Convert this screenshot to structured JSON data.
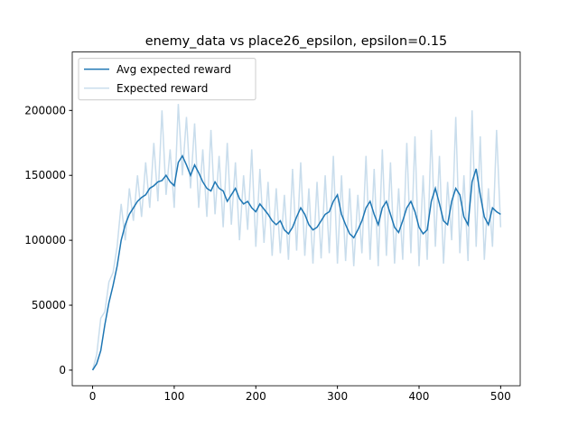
{
  "chart_data": {
    "type": "line",
    "title": "enemy_data vs place26_epsilon, epsilon=0.15",
    "x": [
      0,
      5,
      10,
      15,
      20,
      25,
      30,
      35,
      40,
      45,
      50,
      55,
      60,
      65,
      70,
      75,
      80,
      85,
      90,
      95,
      100,
      105,
      110,
      115,
      120,
      125,
      130,
      135,
      140,
      145,
      150,
      155,
      160,
      165,
      170,
      175,
      180,
      185,
      190,
      195,
      200,
      205,
      210,
      215,
      220,
      225,
      230,
      235,
      240,
      245,
      250,
      255,
      260,
      265,
      270,
      275,
      280,
      285,
      290,
      295,
      300,
      305,
      310,
      315,
      320,
      325,
      330,
      335,
      340,
      345,
      350,
      355,
      360,
      365,
      370,
      375,
      380,
      385,
      390,
      395,
      400,
      405,
      410,
      415,
      420,
      425,
      430,
      435,
      440,
      445,
      450,
      455,
      460,
      465,
      470,
      475,
      480,
      485,
      490,
      495,
      500
    ],
    "series": [
      {
        "name": "Avg expected reward",
        "color": "#1f77b4",
        "values": [
          0,
          5000,
          15000,
          35000,
          52000,
          65000,
          80000,
          100000,
          112000,
          120000,
          125000,
          130000,
          133000,
          135000,
          140000,
          142000,
          145000,
          146000,
          150000,
          145000,
          142000,
          160000,
          165000,
          158000,
          150000,
          158000,
          152000,
          145000,
          140000,
          138000,
          145000,
          140000,
          138000,
          130000,
          135000,
          140000,
          132000,
          128000,
          130000,
          125000,
          122000,
          128000,
          124000,
          120000,
          115000,
          112000,
          115000,
          108000,
          105000,
          110000,
          118000,
          125000,
          120000,
          112000,
          108000,
          110000,
          115000,
          120000,
          122000,
          130000,
          135000,
          120000,
          112000,
          105000,
          102000,
          108000,
          115000,
          125000,
          130000,
          120000,
          112000,
          125000,
          130000,
          120000,
          110000,
          106000,
          115000,
          125000,
          130000,
          122000,
          110000,
          105000,
          108000,
          130000,
          140000,
          128000,
          115000,
          112000,
          130000,
          140000,
          135000,
          118000,
          112000,
          145000,
          155000,
          135000,
          118000,
          112000,
          125000,
          122000,
          120000
        ]
      },
      {
        "name": "Expected reward",
        "color": "#c9ddec",
        "values": [
          0,
          12000,
          40000,
          45000,
          68000,
          75000,
          95000,
          128000,
          100000,
          140000,
          115000,
          150000,
          118000,
          160000,
          125000,
          175000,
          130000,
          200000,
          135000,
          170000,
          125000,
          205000,
          150000,
          195000,
          140000,
          190000,
          125000,
          170000,
          118000,
          185000,
          120000,
          165000,
          110000,
          175000,
          112000,
          160000,
          100000,
          150000,
          108000,
          170000,
          95000,
          155000,
          98000,
          145000,
          88000,
          140000,
          90000,
          135000,
          85000,
          155000,
          92000,
          160000,
          88000,
          140000,
          82000,
          145000,
          86000,
          150000,
          90000,
          165000,
          82000,
          150000,
          84000,
          140000,
          80000,
          135000,
          90000,
          165000,
          85000,
          155000,
          80000,
          170000,
          88000,
          160000,
          82000,
          140000,
          85000,
          175000,
          90000,
          180000,
          80000,
          150000,
          85000,
          185000,
          95000,
          165000,
          82000,
          145000,
          100000,
          195000,
          90000,
          150000,
          84000,
          200000,
          95000,
          180000,
          85000,
          140000,
          95000,
          185000,
          110000
        ]
      }
    ],
    "xlim": [
      -24.95,
      523.95
    ],
    "ylim": [
      -12000,
      245000
    ],
    "xticks": [
      0,
      100,
      200,
      300,
      400,
      500
    ],
    "yticks": [
      0,
      50000,
      100000,
      150000,
      200000
    ],
    "legend": "upper left"
  }
}
